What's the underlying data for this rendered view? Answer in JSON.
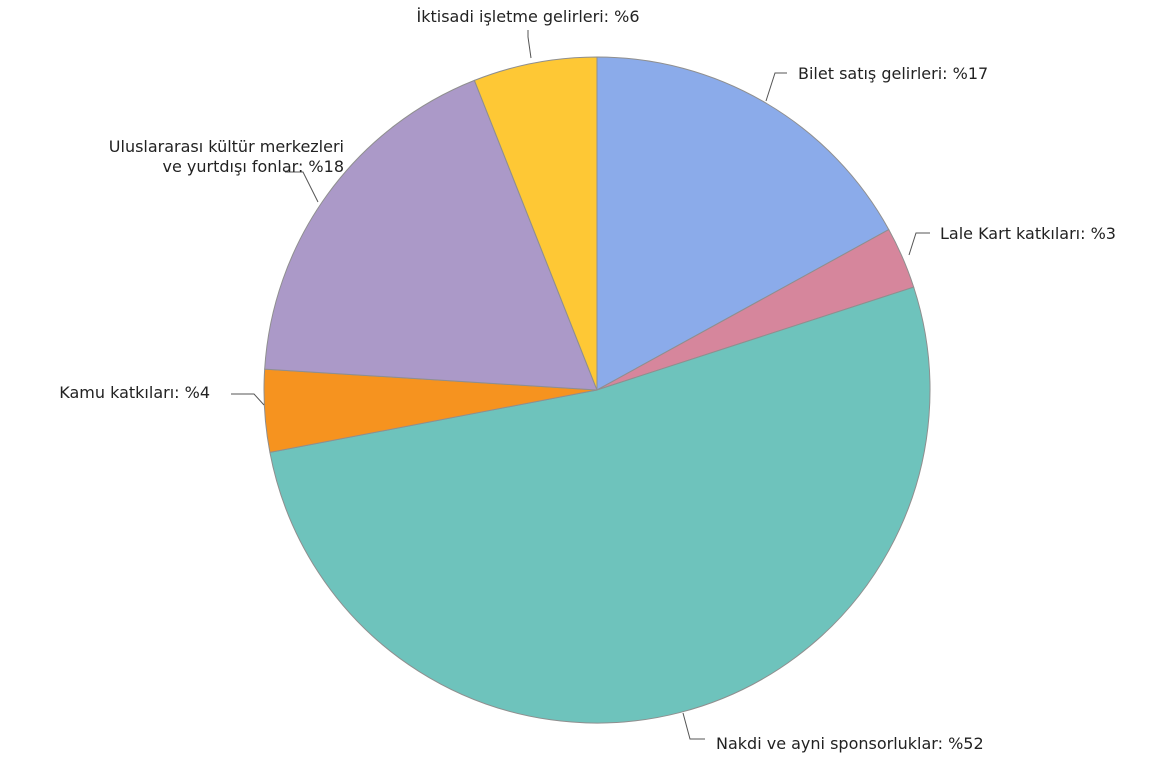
{
  "chart_data": {
    "type": "pie",
    "title": "",
    "start": "top",
    "direction": "clockwise",
    "slices": [
      {
        "label": "Bilet satış gelirleri",
        "value": 17,
        "color": "#8BABEA",
        "label_lines": [
          "Bilet satış gelirleri: %17"
        ]
      },
      {
        "label": "Lale Kart katkıları",
        "value": 3,
        "color": "#D6869C",
        "label_lines": [
          "Lale Kart katkıları: %3"
        ]
      },
      {
        "label": "Nakdi ve ayni sponsorluklar",
        "value": 52,
        "color": "#6EC3BC",
        "label_lines": [
          "Nakdi ve ayni sponsorluklar: %52"
        ]
      },
      {
        "label": "Kamu katkıları",
        "value": 4,
        "color": "#F6931F",
        "label_lines": [
          "Kamu katkıları: %4"
        ]
      },
      {
        "label": "Uluslararası kültür merkezleri ve yurtdışı fonlar",
        "value": 18,
        "color": "#AB99C8",
        "label_lines": [
          "Uluslararası kültür merkezleri",
          "ve yurtdışı fonlar: %18"
        ]
      },
      {
        "label": "İktisadi işletme gelirleri",
        "value": 6,
        "color": "#FEC835",
        "label_lines": [
          "İktisadi işletme gelirleri: %6"
        ]
      }
    ]
  }
}
